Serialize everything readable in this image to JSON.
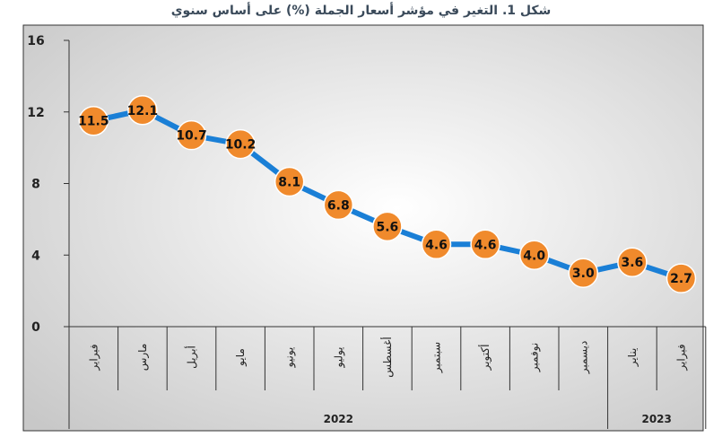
{
  "title": "شكل 1. التغير في مؤشر أسعار الجملة (%) على أساس سنوي",
  "colors": {
    "line": "#1a7fd6",
    "marker": "#f08a2c",
    "marker_stroke": "#ffffff",
    "plot_bg_center": "#ffffff",
    "plot_bg_edge": "#c8c8c8",
    "frame": "#333333"
  },
  "chart_data": {
    "type": "line",
    "categories": [
      "فبراير",
      "مارس",
      "أبريل",
      "مايو",
      "يونيو",
      "يوليو",
      "أغسطس",
      "سبتمبر",
      "أكتوبر",
      "نوفمبر",
      "ديسمبر",
      "يناير",
      "فبراير"
    ],
    "years": [
      {
        "label": "2022",
        "from": 0,
        "to": 10
      },
      {
        "label": "2023",
        "from": 11,
        "to": 12
      }
    ],
    "values": [
      11.5,
      12.1,
      10.7,
      10.2,
      8.1,
      6.8,
      5.6,
      4.6,
      4.6,
      4.0,
      3.0,
      3.6,
      2.7
    ],
    "labels": [
      "11.5",
      "12.1",
      "10.7",
      "10.2",
      "8.1",
      "6.8",
      "5.6",
      "4.6",
      "4.6",
      "4.0",
      "3.0",
      "3.6",
      "2.7"
    ],
    "yticks": [
      "0",
      "4",
      "8",
      "12",
      "16"
    ],
    "ylim": [
      0,
      16
    ],
    "grid": false,
    "legend": "none"
  }
}
